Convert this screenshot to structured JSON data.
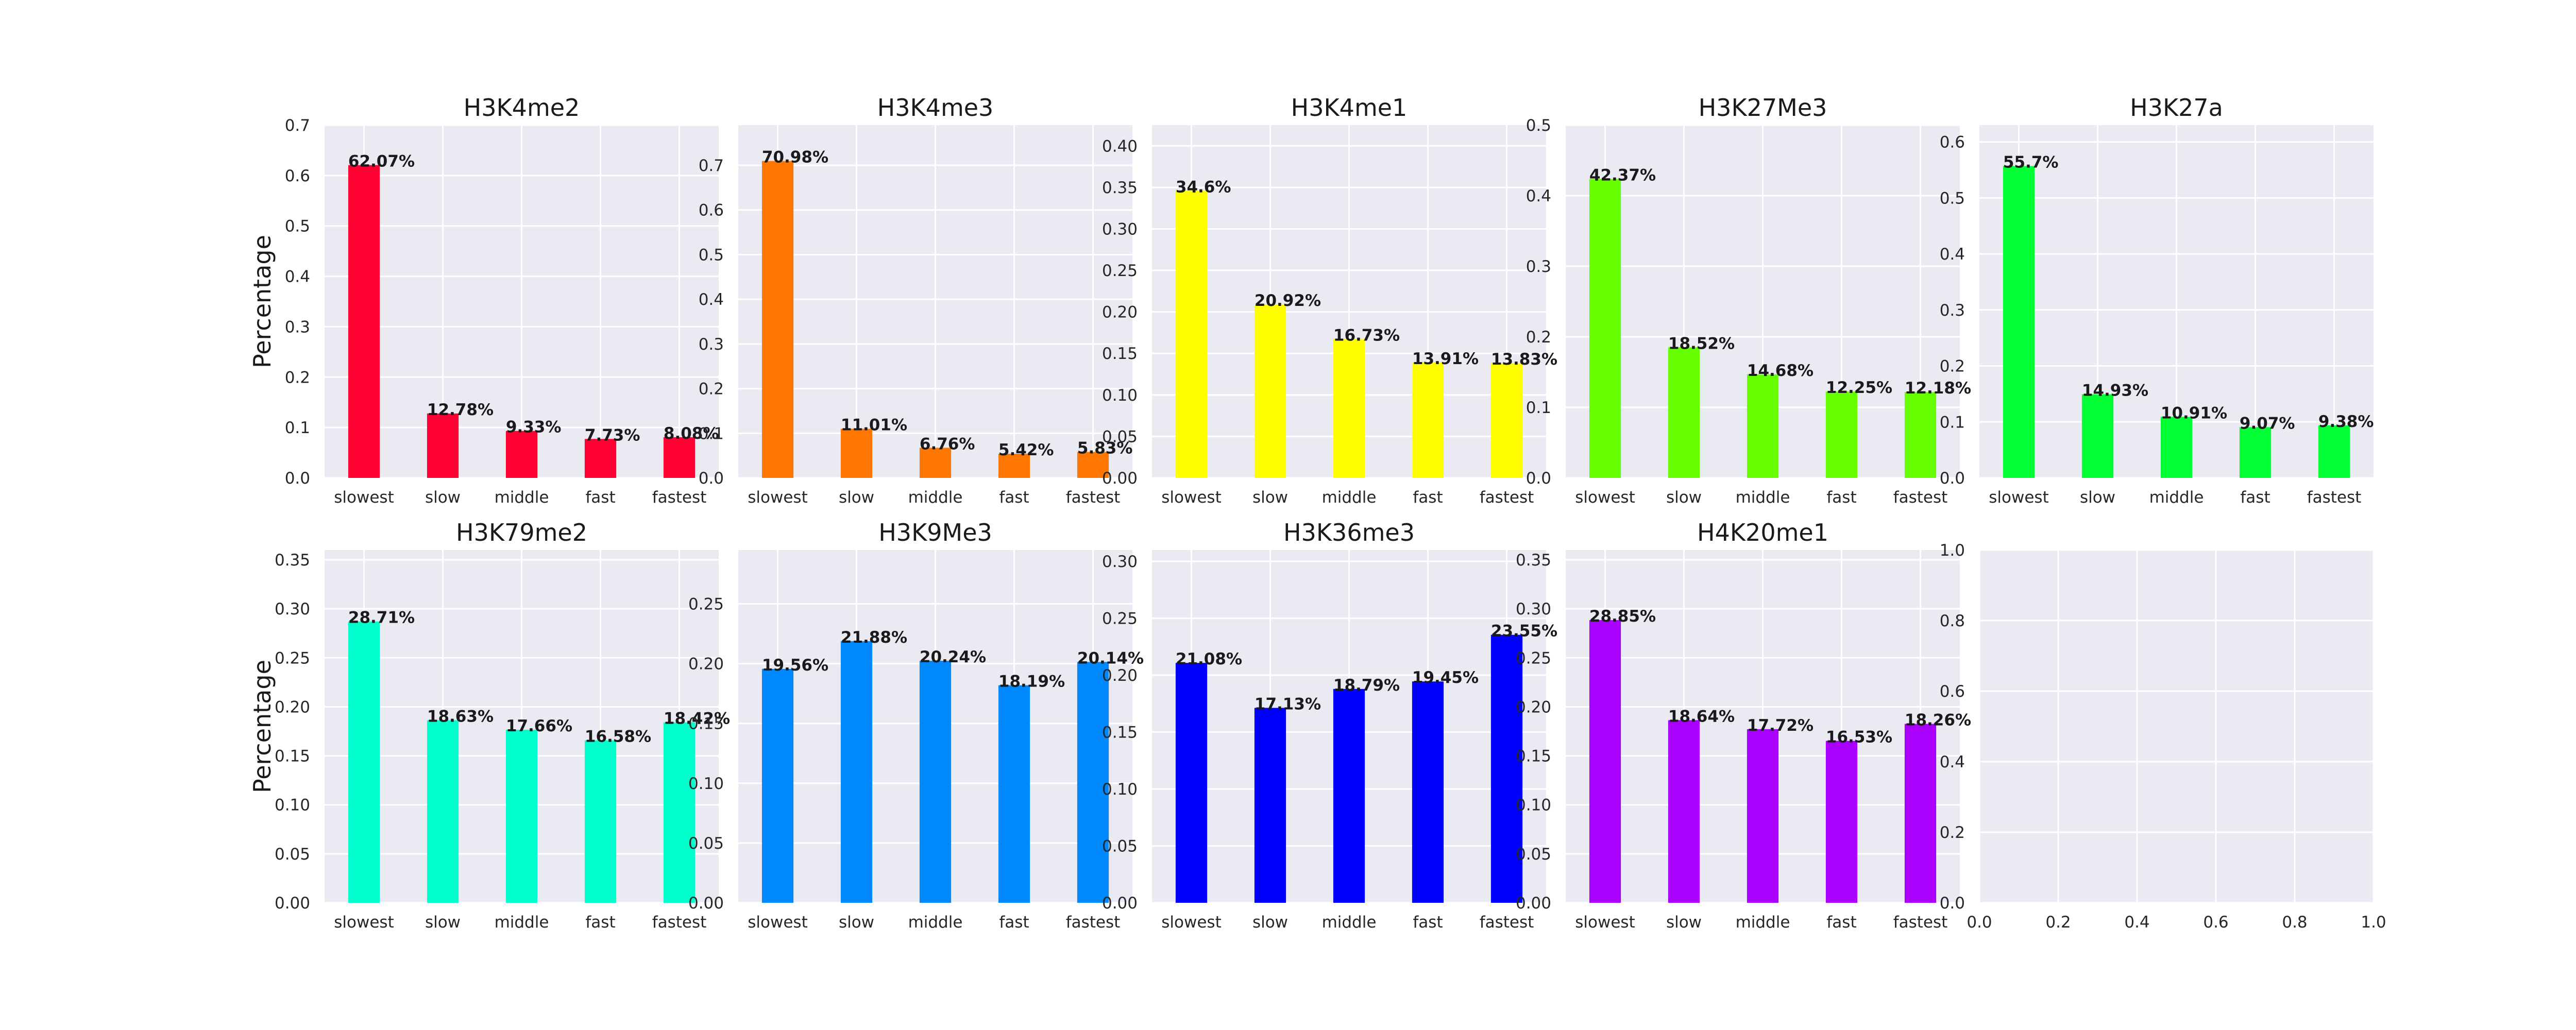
{
  "chart_data": [
    {
      "type": "bar",
      "title": "H3K4me2",
      "ylabel": "Percentage",
      "color": "#ff0033",
      "categories": [
        "slowest",
        "slow",
        "middle",
        "fast",
        "fastest"
      ],
      "values": [
        0.6207,
        0.1278,
        0.0933,
        0.0773,
        0.0808
      ],
      "labels": [
        "62.07%",
        "12.78%",
        "9.33%",
        "7.73%",
        "8.08%"
      ],
      "yticks": [
        "0.0",
        "0.1",
        "0.2",
        "0.3",
        "0.4",
        "0.5",
        "0.6",
        "0.7"
      ],
      "ylim": [
        0,
        0.7
      ],
      "grid": true
    },
    {
      "type": "bar",
      "title": "H3K4me3",
      "ylabel": "",
      "color": "#ff7700",
      "categories": [
        "slowest",
        "slow",
        "middle",
        "fast",
        "fastest"
      ],
      "values": [
        0.7098,
        0.1101,
        0.0676,
        0.0542,
        0.0583
      ],
      "labels": [
        "70.98%",
        "11.01%",
        "6.76%",
        "5.42%",
        "5.83%"
      ],
      "yticks": [
        "0.0",
        "0.1",
        "0.2",
        "0.3",
        "0.4",
        "0.5",
        "0.6",
        "0.7"
      ],
      "ylim": [
        0,
        0.79
      ],
      "grid": true
    },
    {
      "type": "bar",
      "title": "H3K4me1",
      "ylabel": "",
      "color": "#ffff00",
      "categories": [
        "slowest",
        "slow",
        "middle",
        "fast",
        "fastest"
      ],
      "values": [
        0.346,
        0.2092,
        0.1673,
        0.1391,
        0.1383
      ],
      "labels": [
        "34.6%",
        "20.92%",
        "16.73%",
        "13.91%",
        "13.83%"
      ],
      "yticks": [
        "0.00",
        "0.05",
        "0.10",
        "0.15",
        "0.20",
        "0.25",
        "0.30",
        "0.35",
        "0.40"
      ],
      "ylim": [
        0,
        0.425
      ],
      "grid": true
    },
    {
      "type": "bar",
      "title": "H3K27Me3",
      "ylabel": "",
      "color": "#66ff00",
      "categories": [
        "slowest",
        "slow",
        "middle",
        "fast",
        "fastest"
      ],
      "values": [
        0.4237,
        0.1852,
        0.1468,
        0.1225,
        0.1218
      ],
      "labels": [
        "42.37%",
        "18.52%",
        "14.68%",
        "12.25%",
        "12.18%"
      ],
      "yticks": [
        "0.0",
        "0.1",
        "0.2",
        "0.3",
        "0.4",
        "0.5"
      ],
      "ylim": [
        0,
        0.5
      ],
      "grid": true
    },
    {
      "type": "bar",
      "title": "H3K27a",
      "ylabel": "",
      "color": "#00ff33",
      "categories": [
        "slowest",
        "slow",
        "middle",
        "fast",
        "fastest"
      ],
      "values": [
        0.557,
        0.1493,
        0.1091,
        0.0907,
        0.0938
      ],
      "labels": [
        "55.7%",
        "14.93%",
        "10.91%",
        "9.07%",
        "9.38%"
      ],
      "yticks": [
        "0.0",
        "0.1",
        "0.2",
        "0.3",
        "0.4",
        "0.5",
        "0.6"
      ],
      "ylim": [
        0,
        0.63
      ],
      "grid": true
    },
    {
      "type": "bar",
      "title": "H3K79me2",
      "ylabel": "Percentage",
      "color": "#00ffcc",
      "categories": [
        "slowest",
        "slow",
        "middle",
        "fast",
        "fastest"
      ],
      "values": [
        0.2871,
        0.1863,
        0.1766,
        0.1658,
        0.1842
      ],
      "labels": [
        "28.71%",
        "18.63%",
        "17.66%",
        "16.58%",
        "18.42%"
      ],
      "yticks": [
        "0.00",
        "0.05",
        "0.10",
        "0.15",
        "0.20",
        "0.25",
        "0.30",
        "0.35"
      ],
      "ylim": [
        0,
        0.36
      ],
      "grid": true
    },
    {
      "type": "bar",
      "title": "H3K9Me3",
      "ylabel": "",
      "color": "#0088ff",
      "categories": [
        "slowest",
        "slow",
        "middle",
        "fast",
        "fastest"
      ],
      "values": [
        0.1956,
        0.2188,
        0.2024,
        0.1819,
        0.2014
      ],
      "labels": [
        "19.56%",
        "21.88%",
        "20.24%",
        "18.19%",
        "20.14%"
      ],
      "yticks": [
        "0.00",
        "0.05",
        "0.10",
        "0.15",
        "0.20",
        "0.25"
      ],
      "ylim": [
        0,
        0.295
      ],
      "grid": true
    },
    {
      "type": "bar",
      "title": "H3K36me3",
      "ylabel": "",
      "color": "#0000ff",
      "categories": [
        "slowest",
        "slow",
        "middle",
        "fast",
        "fastest"
      ],
      "values": [
        0.2108,
        0.1713,
        0.1879,
        0.1945,
        0.2355
      ],
      "labels": [
        "21.08%",
        "17.13%",
        "18.79%",
        "19.45%",
        "23.55%"
      ],
      "yticks": [
        "0.00",
        "0.05",
        "0.10",
        "0.15",
        "0.20",
        "0.25",
        "0.30"
      ],
      "ylim": [
        0,
        0.31
      ],
      "grid": true
    },
    {
      "type": "bar",
      "title": "H4K20me1",
      "ylabel": "",
      "color": "#aa00ff",
      "categories": [
        "slowest",
        "slow",
        "middle",
        "fast",
        "fastest"
      ],
      "values": [
        0.2885,
        0.1864,
        0.1772,
        0.1653,
        0.1826
      ],
      "labels": [
        "28.85%",
        "18.64%",
        "17.72%",
        "16.53%",
        "18.26%"
      ],
      "yticks": [
        "0.00",
        "0.05",
        "0.10",
        "0.15",
        "0.20",
        "0.25",
        "0.30",
        "0.35"
      ],
      "ylim": [
        0,
        0.36
      ],
      "grid": true
    },
    {
      "type": "empty",
      "title": "",
      "ylabel": "",
      "xticks": [
        "0.0",
        "0.2",
        "0.4",
        "0.6",
        "0.8",
        "1.0"
      ],
      "yticks": [
        "0.0",
        "0.2",
        "0.4",
        "0.6",
        "0.8",
        "1.0"
      ],
      "xlim": [
        0,
        1
      ],
      "ylim": [
        0,
        1
      ],
      "grid": true
    }
  ]
}
